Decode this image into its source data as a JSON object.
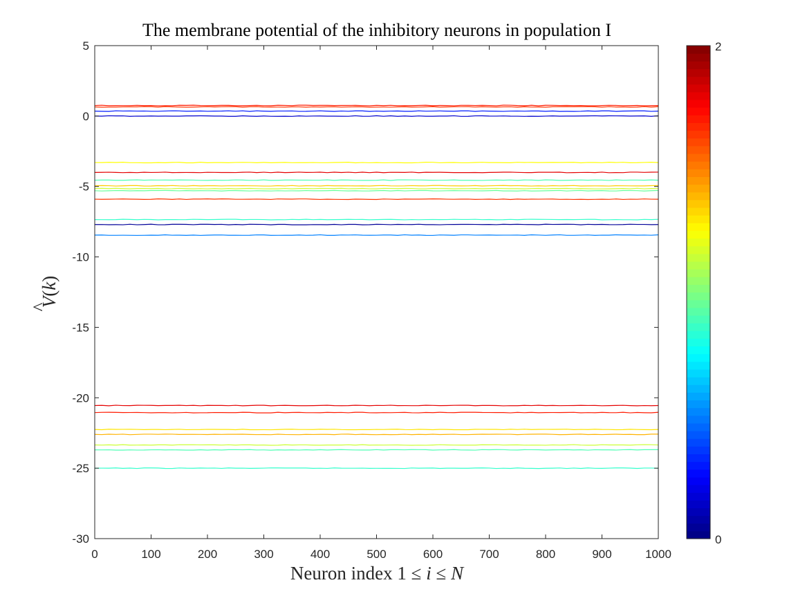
{
  "chart_data": {
    "type": "line",
    "title": "The membrane potential of the inhibitory neurons in population I",
    "xlabel": {
      "prefix": "Neuron index 1 ",
      "le1": "≤",
      "var_i": "i",
      "le2": "≤",
      "var_n": "N"
    },
    "ylabel": {
      "var_v": "V",
      "hat": "^",
      "open": "(",
      "var_k": "k",
      "close": ")"
    },
    "xlim": [
      0,
      1000
    ],
    "ylim": [
      -30,
      5
    ],
    "xticks": [
      0,
      100,
      200,
      300,
      400,
      500,
      600,
      700,
      800,
      900,
      1000
    ],
    "yticks": [
      5,
      0,
      -5,
      -10,
      -15,
      -20,
      -25,
      -30
    ],
    "grid": false,
    "colorbar": {
      "colormap": "jet",
      "range": [
        0,
        2
      ],
      "ticks": [
        "2",
        "0"
      ]
    },
    "series": [
      {
        "y": 0.75,
        "color_value": 1.7
      },
      {
        "y": 0.65,
        "color_value": 1.65
      },
      {
        "y": 0.35,
        "color_value": 0.3
      },
      {
        "y": 0.0,
        "color_value": 0.15
      },
      {
        "y": -3.3,
        "color_value": 1.25
      },
      {
        "y": -4.0,
        "color_value": 1.8
      },
      {
        "y": -4.55,
        "color_value": 0.9
      },
      {
        "y": -4.95,
        "color_value": 1.35
      },
      {
        "y": -5.15,
        "color_value": 1.15
      },
      {
        "y": -5.3,
        "color_value": 0.95
      },
      {
        "y": -5.9,
        "color_value": 1.65
      },
      {
        "y": -7.35,
        "color_value": 0.85
      },
      {
        "y": -7.7,
        "color_value": 0.05
      },
      {
        "y": -8.45,
        "color_value": 0.5
      },
      {
        "y": -20.55,
        "color_value": 1.8
      },
      {
        "y": -21.05,
        "color_value": 1.7
      },
      {
        "y": -22.25,
        "color_value": 1.3
      },
      {
        "y": -22.6,
        "color_value": 1.4
      },
      {
        "y": -23.35,
        "color_value": 1.15
      },
      {
        "y": -23.7,
        "color_value": 0.9
      },
      {
        "y": -25.0,
        "color_value": 0.85
      }
    ]
  }
}
